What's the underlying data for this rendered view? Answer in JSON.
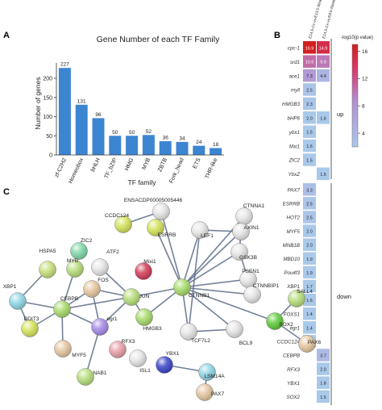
{
  "chart_data": [
    {
      "type": "bar",
      "panel": "A",
      "title": "Gene Number of each TF Family",
      "xlabel": "TF family",
      "ylabel": "Number of genes",
      "ylim": [
        0,
        240
      ],
      "yticks": [
        0,
        50,
        100,
        150,
        200
      ],
      "categories": [
        "zf-C2H2",
        "Homeobox",
        "bHLH",
        "TF_bZIP",
        "HMG",
        "MYB",
        "ZBTB",
        "Fork_head",
        "ETS",
        "THR-like"
      ],
      "values": [
        227,
        131,
        96,
        50,
        50,
        52,
        36,
        34,
        24,
        18
      ],
      "bar_color": "#3c85d1",
      "grid": false
    },
    {
      "type": "heatmap",
      "panel": "B",
      "columns": [
        "E14.5-Cx-vs-E13.5-Striatum",
        "E14.5-Cx-vs-E8.5-Striatum"
      ],
      "colorbar": {
        "label": "-log10(p value)",
        "ticks": [
          4,
          8,
          12,
          16
        ],
        "min": 2,
        "max": 17
      },
      "groups": [
        {
          "label": "up",
          "rows": [
            {
              "gene": "cpc-1",
              "values": [
                16.9,
                14.9
              ]
            },
            {
              "gene": "srd1",
              "values": [
                10.6,
                9.9
              ]
            },
            {
              "gene": "ace1",
              "values": [
                7.3,
                4.4
              ]
            },
            {
              "gene": "myll",
              "values": [
                2.5,
                null
              ]
            },
            {
              "gene": "HMGB3",
              "values": [
                2.3,
                null
              ]
            },
            {
              "gene": "bHP6",
              "values": [
                2.0,
                1.6
              ]
            },
            {
              "gene": "ybx1",
              "values": [
                1.5,
                null
              ]
            },
            {
              "gene": "Mxi1",
              "values": [
                1.6,
                null
              ]
            },
            {
              "gene": "ZIC2",
              "values": [
                1.5,
                null
              ]
            },
            {
              "gene": "YbxZ",
              "values": [
                null,
                1.5
              ]
            }
          ]
        },
        {
          "label": "down",
          "rows": [
            {
              "gene": "PAX7",
              "values": [
                3.3,
                null
              ]
            },
            {
              "gene": "ESRRB",
              "values": [
                2.5,
                null
              ]
            },
            {
              "gene": "HOT2",
              "values": [
                2.5,
                null
              ]
            },
            {
              "gene": "MYF5",
              "values": [
                2.0,
                null
              ]
            },
            {
              "gene": "MNB1B",
              "values": [
                2.0,
                null
              ]
            },
            {
              "gene": "MBD10",
              "values": [
                1.9,
                null
              ]
            },
            {
              "gene": "Pou4f3",
              "values": [
                1.9,
                null
              ]
            },
            {
              "gene": "XBP1",
              "values": [
                1.7,
                null
              ]
            },
            {
              "gene": "ISL1",
              "values": [
                1.6,
                null
              ]
            },
            {
              "gene": "FOXS1",
              "values": [
                1.4,
                null
              ]
            },
            {
              "gene": "egr1",
              "values": [
                1.4,
                null
              ]
            },
            {
              "gene": "CCDC124",
              "values": [
                1.3,
                null
              ]
            },
            {
              "gene": "CEBPB",
              "values": [
                null,
                3.7
              ]
            },
            {
              "gene": "RFX3",
              "values": [
                null,
                2.0
              ]
            },
            {
              "gene": "YBX1",
              "values": [
                null,
                1.8
              ]
            },
            {
              "gene": "SOX2",
              "values": [
                null,
                1.5
              ]
            }
          ]
        }
      ]
    },
    {
      "type": "network",
      "panel": "C",
      "nodes": [
        {
          "id": "ENSACDP00005005446",
          "color": "#e6e6e6"
        },
        {
          "id": "CTNNA1",
          "color": "#e6e6e6"
        },
        {
          "id": "CCDC124",
          "color": "#d5e35a"
        },
        {
          "id": "ESRRB",
          "color": "#d5e35a"
        },
        {
          "id": "LEF1",
          "color": "#e6e6e6"
        },
        {
          "id": "AXIN1",
          "color": "#e6e6e6"
        },
        {
          "id": "GSK3B",
          "color": "#e6e6e6"
        },
        {
          "id": "ZIC2",
          "color": "#7fd8a8"
        },
        {
          "id": "HSPA5",
          "color": "#c8e07a"
        },
        {
          "id": "MYB",
          "color": "#b7de7a"
        },
        {
          "id": "ATF2",
          "color": "#e6e6e6"
        },
        {
          "id": "Mixi1",
          "color": "#d23c57"
        },
        {
          "id": "PSEN1",
          "color": "#e6e6e6"
        },
        {
          "id": "XBP1",
          "color": "#8fd6e6"
        },
        {
          "id": "FOS",
          "color": "#e6c7a0"
        },
        {
          "id": "JUN",
          "color": "#b7de7a"
        },
        {
          "id": "CTNNB1",
          "color": "#a8db6a"
        },
        {
          "id": "CTNNBIP1",
          "color": "#e6e6e6"
        },
        {
          "id": "SALL4",
          "color": "#b7de7a"
        },
        {
          "id": "CEBPB",
          "color": "#a8db6a"
        },
        {
          "id": "DDIT3",
          "color": "#d5e35a"
        },
        {
          "id": "egr1",
          "color": "#a58ae6"
        },
        {
          "id": "HMGB3",
          "color": "#a8db6a"
        },
        {
          "id": "SOX2",
          "color": "#5fcc3a"
        },
        {
          "id": "TCF7L2",
          "color": "#e6e6e6"
        },
        {
          "id": "MYF5",
          "color": "#e6c7a0"
        },
        {
          "id": "RFX3",
          "color": "#e8a0a8"
        },
        {
          "id": "BCL9",
          "color": "#e6e6e6"
        },
        {
          "id": "PAX6",
          "color": "#e6c7a0"
        },
        {
          "id": "NAB1",
          "color": "#b7de7a"
        },
        {
          "id": "ISL1",
          "color": "#e6e6e6"
        },
        {
          "id": "YBX1",
          "color": "#3a45c8"
        },
        {
          "id": "LSM14A",
          "color": "#8fd6e6"
        },
        {
          "id": "PAX7",
          "color": "#e6c7a0"
        }
      ],
      "edges": [
        [
          "XBP1",
          "HSPA5"
        ],
        [
          "XBP1",
          "DDIT3"
        ],
        [
          "XBP1",
          "CEBPB"
        ],
        [
          "DDIT3",
          "CEBPB"
        ],
        [
          "CEBPB",
          "MYB"
        ],
        [
          "CEBPB",
          "FOS"
        ],
        [
          "CEBPB",
          "egr1"
        ],
        [
          "CEBPB",
          "JUN"
        ],
        [
          "CEBPB",
          "MYF5"
        ],
        [
          "egr1",
          "JUN"
        ],
        [
          "egr1",
          "NAB1"
        ],
        [
          "egr1",
          "FOS"
        ],
        [
          "FOS",
          "JUN"
        ],
        [
          "ATF2",
          "JUN"
        ],
        [
          "JUN",
          "CTNNB1"
        ],
        [
          "JUN",
          "HMGB3"
        ],
        [
          "CTNNB1",
          "ESRRB"
        ],
        [
          "CTNNB1",
          "LEF1"
        ],
        [
          "CTNNB1",
          "AXIN1"
        ],
        [
          "CTNNB1",
          "GSK3B"
        ],
        [
          "CTNNB1",
          "CTNNA1"
        ],
        [
          "CTNNB1",
          "PSEN1"
        ],
        [
          "CTNNB1",
          "CTNNBIP1"
        ],
        [
          "CTNNB1",
          "TCF7L2"
        ],
        [
          "CTNNB1",
          "BCL9"
        ],
        [
          "CTNNB1",
          "SOX2"
        ],
        [
          "CTNNB1",
          "HMGB3"
        ],
        [
          "CTNNB1",
          "ENSACDP00005005446"
        ],
        [
          "LEF1",
          "AXIN1"
        ],
        [
          "AXIN1",
          "GSK3B"
        ],
        [
          "GSK3B",
          "PSEN1"
        ],
        [
          "LEF1",
          "TCF7L2"
        ],
        [
          "TCF7L2",
          "BCL9"
        ],
        [
          "SOX2",
          "PAX6"
        ],
        [
          "SOX2",
          "SALL4"
        ],
        [
          "YBX1",
          "LSM14A"
        ],
        [
          "LSM14A",
          "PAX7"
        ],
        [
          "CTNNA1",
          "AXIN1"
        ],
        [
          "ENSACDP00005005446",
          "CCDC124"
        ]
      ]
    }
  ]
}
